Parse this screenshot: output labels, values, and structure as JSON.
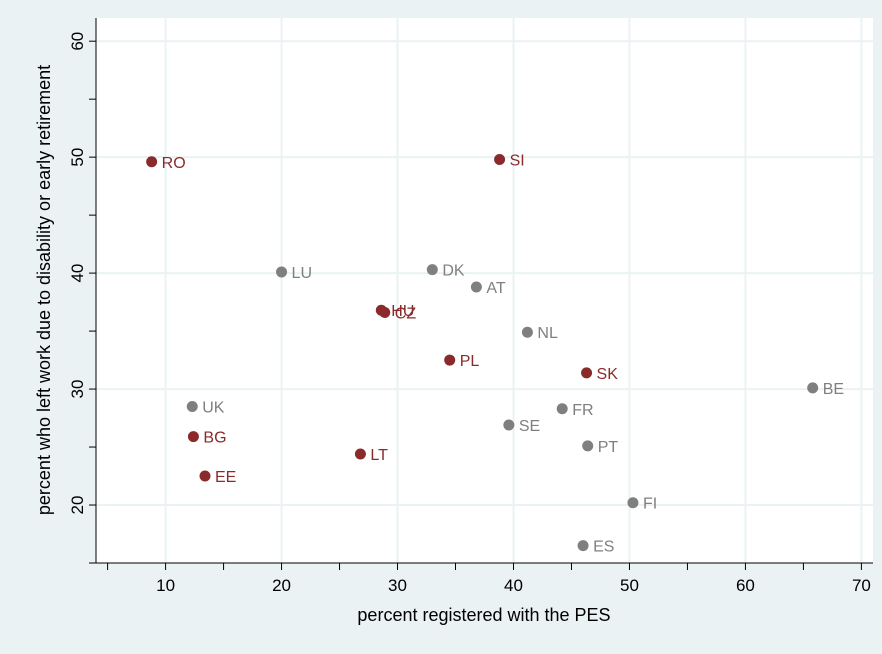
{
  "chart_data": {
    "type": "scatter",
    "title": "",
    "xlabel": "percent registered with the PES",
    "ylabel": "percent who left work due to disability or early retirement",
    "xlim": [
      4,
      71
    ],
    "ylim": [
      15,
      62
    ],
    "x_ticks": [
      10,
      20,
      30,
      40,
      50,
      60,
      70
    ],
    "x_minor_ticks": [
      5,
      15,
      25,
      35,
      45,
      55,
      65
    ],
    "y_ticks": [
      20,
      30,
      40,
      50,
      60
    ],
    "y_minor_ticks": [
      15,
      25,
      35,
      45,
      55
    ],
    "grid": true,
    "colors": {
      "group_red": "#8b2a2a",
      "group_gray": "#7f7f7f",
      "background": "#eaf2f3",
      "plot_bg": "#ffffff",
      "grid": "#eaf2f3"
    },
    "points": [
      {
        "label": "RO",
        "x": 8.8,
        "y": 49.6,
        "group": "red"
      },
      {
        "label": "SI",
        "x": 38.8,
        "y": 49.8,
        "group": "red"
      },
      {
        "label": "HU",
        "x": 28.6,
        "y": 36.8,
        "group": "red"
      },
      {
        "label": "CZ",
        "x": 28.9,
        "y": 36.6,
        "group": "red"
      },
      {
        "label": "PL",
        "x": 34.5,
        "y": 32.5,
        "group": "red"
      },
      {
        "label": "SK",
        "x": 46.3,
        "y": 31.4,
        "group": "red"
      },
      {
        "label": "BG",
        "x": 12.4,
        "y": 25.9,
        "group": "red"
      },
      {
        "label": "EE",
        "x": 13.4,
        "y": 22.5,
        "group": "red"
      },
      {
        "label": "LT",
        "x": 26.8,
        "y": 24.4,
        "group": "red"
      },
      {
        "label": "LU",
        "x": 20.0,
        "y": 40.1,
        "group": "gray"
      },
      {
        "label": "DK",
        "x": 33.0,
        "y": 40.3,
        "group": "gray"
      },
      {
        "label": "AT",
        "x": 36.8,
        "y": 38.8,
        "group": "gray"
      },
      {
        "label": "NL",
        "x": 41.2,
        "y": 34.9,
        "group": "gray"
      },
      {
        "label": "UK",
        "x": 12.3,
        "y": 28.5,
        "group": "gray"
      },
      {
        "label": "FR",
        "x": 44.2,
        "y": 28.3,
        "group": "gray"
      },
      {
        "label": "SE",
        "x": 39.6,
        "y": 26.9,
        "group": "gray"
      },
      {
        "label": "PT",
        "x": 46.4,
        "y": 25.1,
        "group": "gray"
      },
      {
        "label": "BE",
        "x": 65.8,
        "y": 30.1,
        "group": "gray"
      },
      {
        "label": "FI",
        "x": 50.3,
        "y": 20.2,
        "group": "gray"
      },
      {
        "label": "ES",
        "x": 46.0,
        "y": 16.5,
        "group": "gray"
      }
    ]
  }
}
